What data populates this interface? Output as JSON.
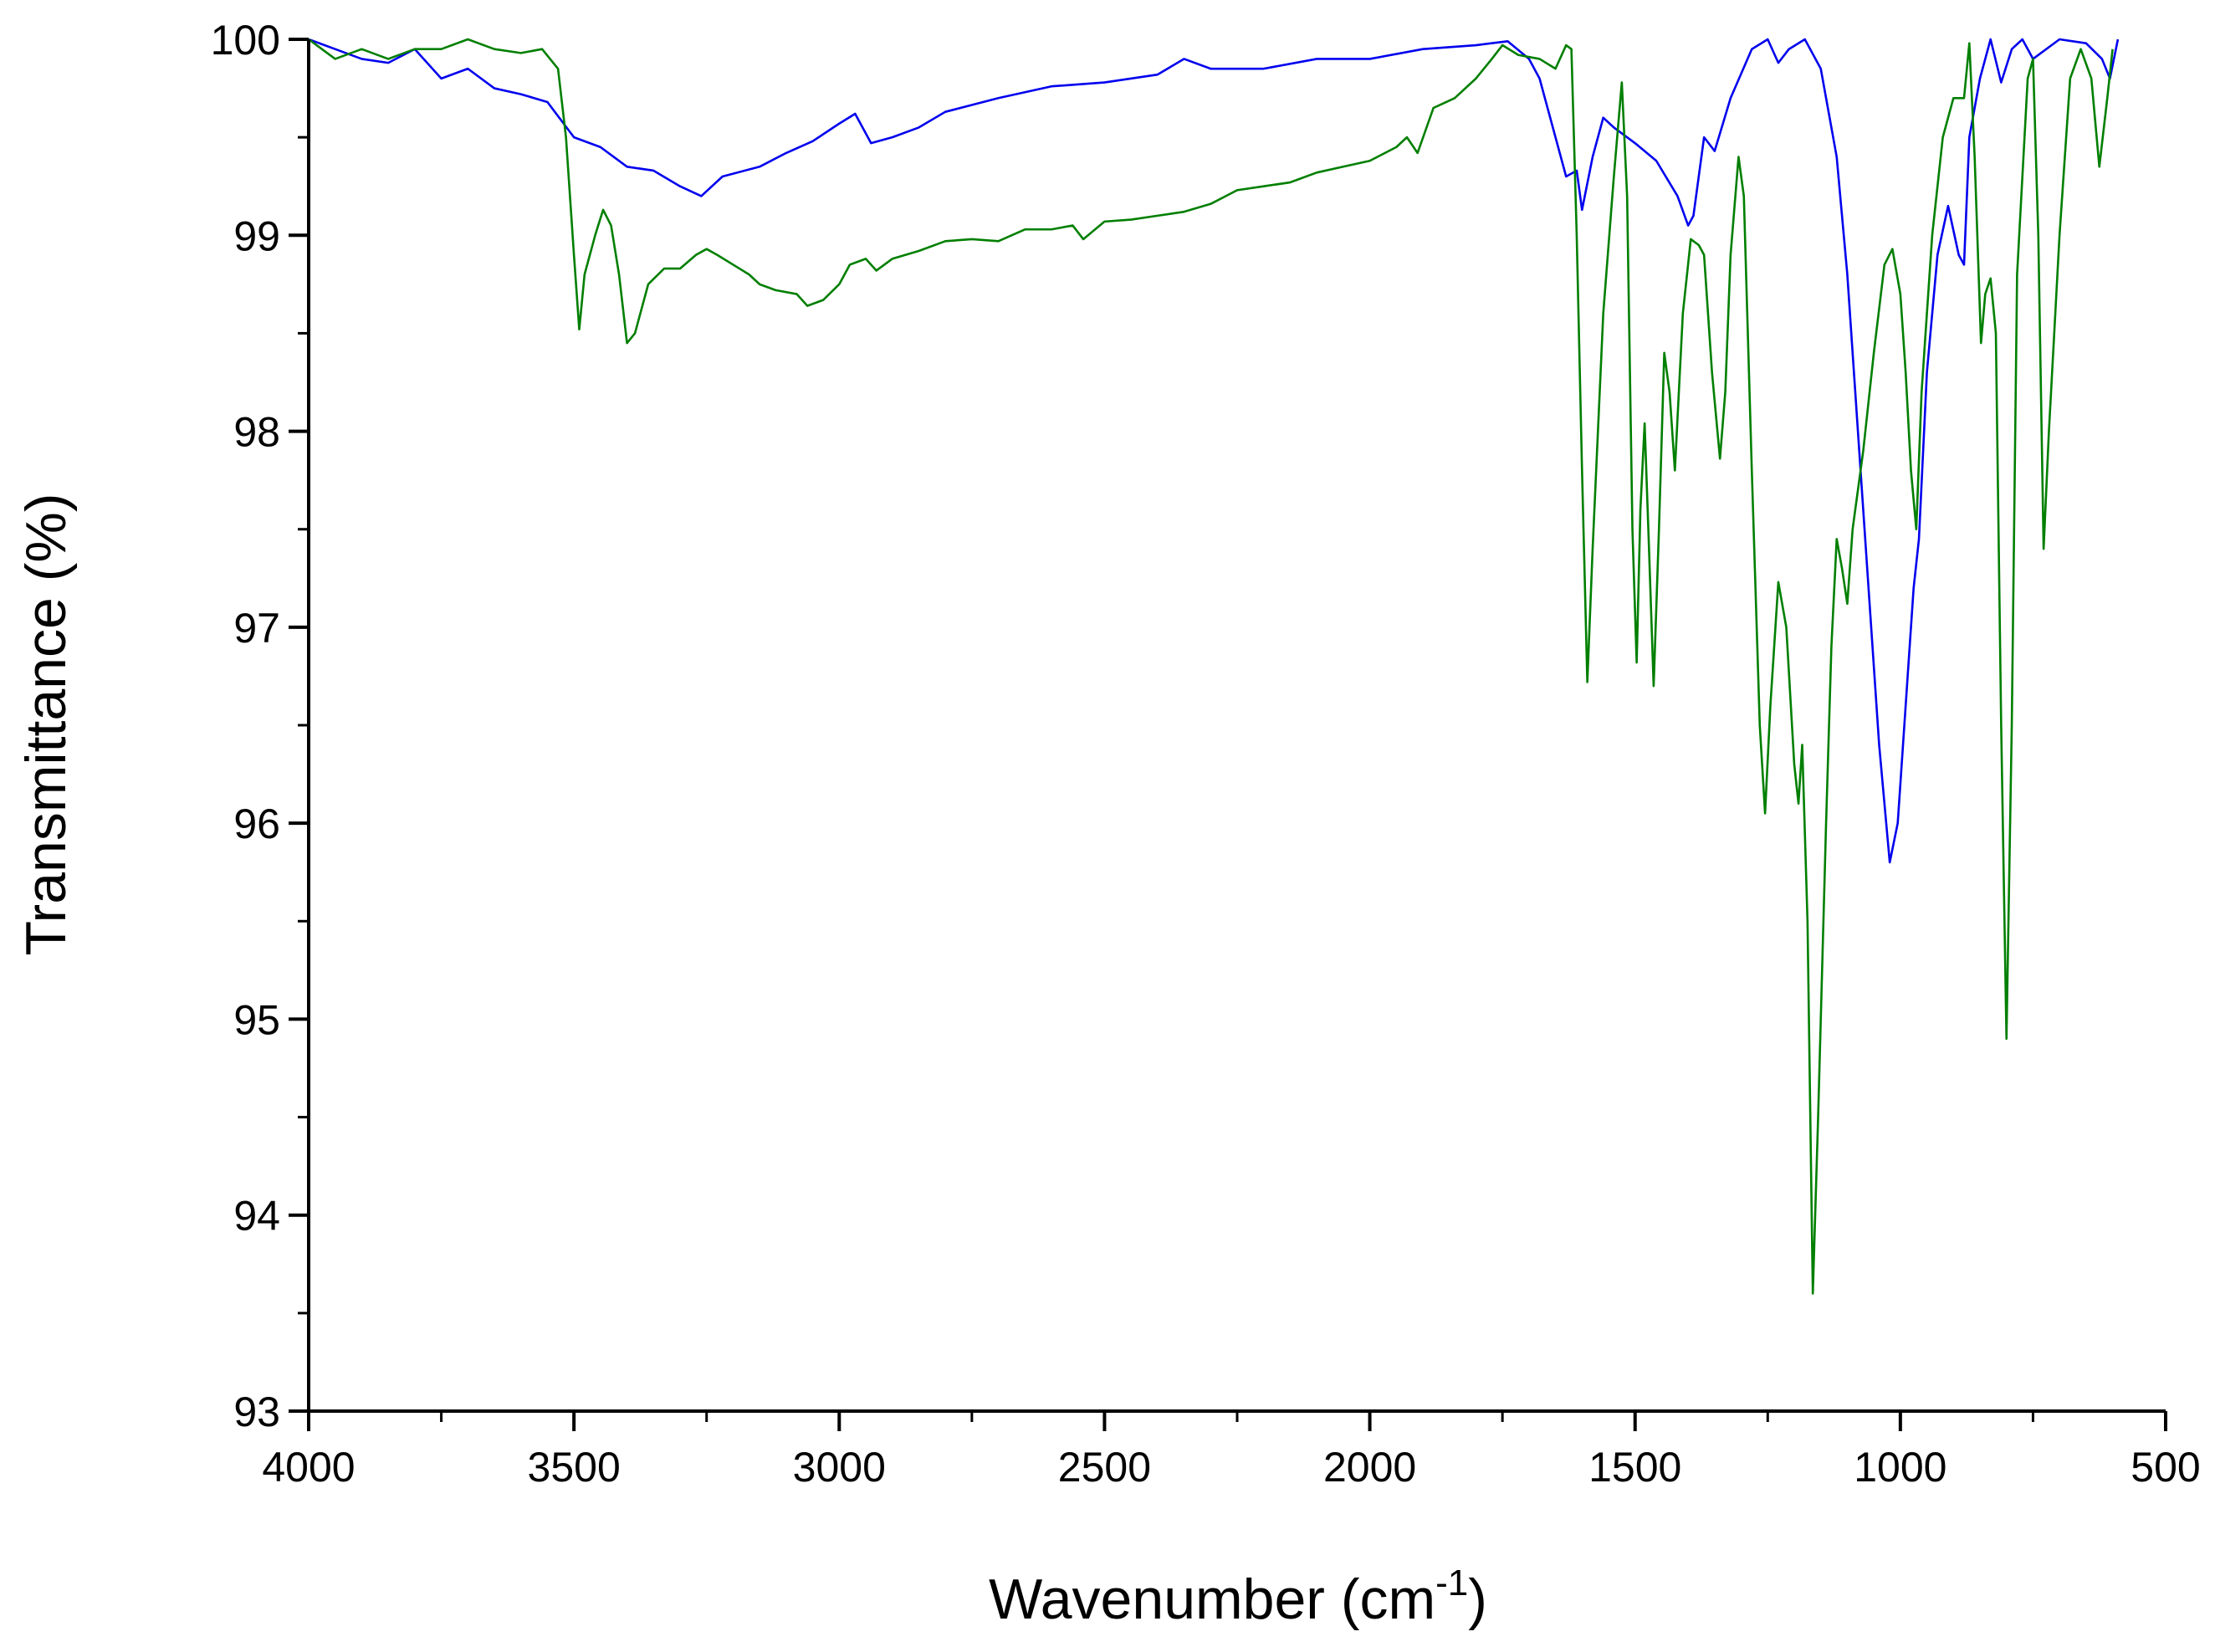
{
  "chart_data": {
    "type": "line",
    "y_label": "Transmittance (%)",
    "x_label": {
      "text": "Wavenumber (cm",
      "superscript": "-1",
      "suffix": ")"
    },
    "xlim": [
      4000,
      500
    ],
    "xticks": [
      4000,
      3500,
      3000,
      2500,
      2000,
      1500,
      1000,
      500
    ],
    "xminorticks": [
      3750,
      3250,
      2750,
      2250,
      1750,
      1250,
      750
    ],
    "ylim": [
      93,
      100
    ],
    "yticks": [
      93,
      94,
      95,
      96,
      97,
      98,
      99,
      100
    ],
    "yminorticks": [
      93.5,
      94.5,
      95.5,
      96.5,
      97.5,
      98.5,
      99.5
    ],
    "grid": false,
    "series": [
      {
        "color": "#0000ee",
        "x": [
          4000,
          3950,
          3900,
          3850,
          3800,
          3750,
          3700,
          3650,
          3600,
          3550,
          3500,
          3450,
          3400,
          3350,
          3300,
          3260,
          3220,
          3150,
          3100,
          3050,
          3000,
          2970,
          2940,
          2900,
          2850,
          2800,
          2700,
          2600,
          2500,
          2400,
          2350,
          2300,
          2200,
          2100,
          2000,
          1900,
          1800,
          1740,
          1700,
          1680,
          1650,
          1630,
          1610,
          1600,
          1580,
          1560,
          1540,
          1500,
          1460,
          1420,
          1400,
          1390,
          1370,
          1350,
          1320,
          1280,
          1250,
          1230,
          1210,
          1180,
          1150,
          1120,
          1100,
          1080,
          1060,
          1040,
          1020,
          1005,
          990,
          975,
          965,
          950,
          930,
          910,
          890,
          880,
          870,
          850,
          830,
          810,
          790,
          770,
          750,
          700,
          650,
          620,
          605,
          590
        ],
        "values": [
          100,
          99.95,
          99.9,
          99.88,
          99.95,
          99.8,
          99.85,
          99.75,
          99.72,
          99.68,
          99.5,
          99.45,
          99.35,
          99.33,
          99.25,
          99.2,
          99.3,
          99.35,
          99.42,
          99.48,
          99.57,
          99.62,
          99.47,
          99.5,
          99.55,
          99.63,
          99.7,
          99.76,
          99.78,
          99.82,
          99.9,
          99.85,
          99.85,
          99.9,
          99.9,
          99.95,
          99.97,
          99.99,
          99.9,
          99.8,
          99.5,
          99.3,
          99.33,
          99.13,
          99.4,
          99.6,
          99.55,
          99.47,
          99.38,
          99.2,
          99.05,
          99.1,
          99.5,
          99.43,
          99.7,
          99.95,
          100,
          99.88,
          99.95,
          100,
          99.85,
          99.4,
          98.8,
          98.0,
          97.2,
          96.4,
          95.8,
          96.0,
          96.6,
          97.2,
          97.45,
          98.3,
          98.9,
          99.15,
          98.9,
          98.85,
          99.5,
          99.8,
          100,
          99.78,
          99.95,
          100,
          99.9,
          100,
          99.98,
          99.9,
          99.8,
          100
        ]
      },
      {
        "color": "#007f00",
        "x": [
          4000,
          3950,
          3900,
          3850,
          3800,
          3750,
          3700,
          3650,
          3600,
          3560,
          3530,
          3515,
          3500,
          3490,
          3480,
          3460,
          3445,
          3430,
          3415,
          3400,
          3385,
          3360,
          3330,
          3300,
          3270,
          3250,
          3230,
          3200,
          3170,
          3150,
          3120,
          3080,
          3060,
          3030,
          3000,
          2980,
          2950,
          2930,
          2900,
          2850,
          2800,
          2750,
          2700,
          2650,
          2600,
          2560,
          2540,
          2500,
          2450,
          2400,
          2350,
          2300,
          2250,
          2200,
          2150,
          2100,
          2050,
          2000,
          1950,
          1930,
          1910,
          1880,
          1840,
          1800,
          1770,
          1750,
          1720,
          1680,
          1650,
          1630,
          1620,
          1610,
          1600,
          1590,
          1580,
          1560,
          1540,
          1525,
          1515,
          1505,
          1497,
          1490,
          1482,
          1475,
          1465,
          1455,
          1445,
          1435,
          1425,
          1410,
          1395,
          1380,
          1370,
          1355,
          1340,
          1330,
          1320,
          1305,
          1295,
          1280,
          1265,
          1255,
          1245,
          1230,
          1215,
          1200,
          1192,
          1185,
          1175,
          1165,
          1155,
          1140,
          1130,
          1120,
          1110,
          1100,
          1090,
          1070,
          1050,
          1030,
          1015,
          1000,
          990,
          980,
          970,
          960,
          940,
          920,
          900,
          880,
          870,
          860,
          848,
          840,
          830,
          820,
          810,
          800,
          790,
          780,
          760,
          750,
          740,
          730,
          720,
          700,
          680,
          660,
          640,
          625,
          610,
          600
        ],
        "values": [
          100,
          99.9,
          99.95,
          99.9,
          99.95,
          99.95,
          100,
          99.95,
          99.93,
          99.95,
          99.85,
          99.5,
          98.9,
          98.52,
          98.8,
          99.0,
          99.13,
          99.05,
          98.8,
          98.45,
          98.5,
          98.75,
          98.83,
          98.83,
          98.9,
          98.93,
          98.9,
          98.85,
          98.8,
          98.75,
          98.72,
          98.7,
          98.64,
          98.67,
          98.75,
          98.85,
          98.88,
          98.82,
          98.88,
          98.92,
          98.97,
          98.98,
          98.97,
          99.03,
          99.03,
          99.05,
          98.98,
          99.07,
          99.08,
          99.1,
          99.12,
          99.16,
          99.23,
          99.25,
          99.27,
          99.32,
          99.35,
          99.38,
          99.45,
          99.5,
          99.42,
          99.65,
          99.7,
          99.8,
          99.9,
          99.97,
          99.92,
          99.9,
          99.85,
          99.97,
          99.95,
          99.0,
          97.8,
          96.72,
          97.4,
          98.6,
          99.3,
          99.78,
          99.2,
          97.5,
          96.82,
          97.6,
          98.04,
          97.5,
          96.7,
          97.5,
          98.4,
          98.2,
          97.8,
          98.6,
          98.98,
          98.95,
          98.9,
          98.3,
          97.86,
          98.2,
          98.9,
          99.4,
          99.2,
          97.8,
          96.5,
          96.05,
          96.6,
          97.23,
          97.0,
          96.3,
          96.1,
          96.4,
          95.5,
          93.6,
          94.5,
          96.0,
          96.9,
          97.45,
          97.3,
          97.12,
          97.5,
          97.9,
          98.4,
          98.85,
          98.93,
          98.7,
          98.3,
          97.8,
          97.5,
          98.2,
          99.0,
          99.5,
          99.7,
          99.7,
          99.98,
          99.4,
          98.45,
          98.7,
          98.78,
          98.5,
          96.5,
          94.9,
          96.5,
          98.8,
          99.8,
          99.9,
          99.0,
          97.4,
          98.0,
          99.0,
          99.8,
          99.95,
          99.8,
          99.35,
          99.7,
          99.95
        ]
      }
    ]
  }
}
